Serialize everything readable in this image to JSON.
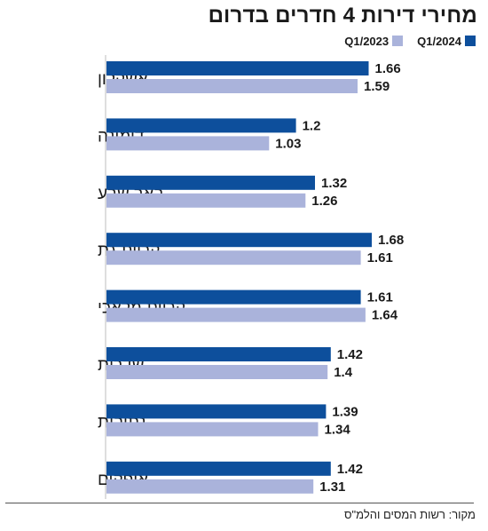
{
  "chart_data": {
    "type": "bar",
    "orientation": "horizontal",
    "title": "מחירי דירות 4 חדרים בדרום",
    "categories": [
      "אשקלון",
      "דימונה",
      "באר שבע",
      "קריית גת",
      "קריית מלאכי",
      "שדרות",
      "נתיבות",
      "אופקים"
    ],
    "series": [
      {
        "name": "Q1/2024",
        "color": "#0d4f9c",
        "values": [
          1.66,
          1.2,
          1.32,
          1.68,
          1.61,
          1.42,
          1.39,
          1.42
        ],
        "labels": [
          "1.66",
          "1.2",
          "1.32",
          "1.68",
          "1.61",
          "1.42",
          "1.39",
          "1.42"
        ]
      },
      {
        "name": "Q1/2023",
        "color": "#aab3db",
        "values": [
          1.59,
          1.03,
          1.26,
          1.61,
          1.64,
          1.4,
          1.34,
          1.31
        ],
        "labels": [
          "1.59",
          "1.03",
          "1.26",
          "1.61",
          "1.64",
          "1.4",
          "1.34",
          "1.31"
        ]
      }
    ],
    "xlim": [
      0,
      1.68
    ],
    "grid": false,
    "legend_position": "top-right",
    "source": "מקור: רשות המסים והלמ\"ס"
  }
}
